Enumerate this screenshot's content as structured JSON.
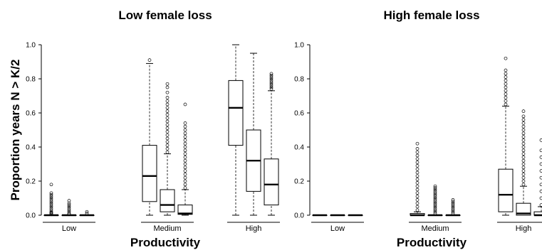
{
  "chart_data": [
    {
      "type": "box",
      "title": "Low female loss",
      "xlabel": "Productivity",
      "ylabel": "Proportion years N > K/2",
      "ylim": [
        0,
        1.0
      ],
      "yticks": [
        "0.0",
        "0.2",
        "0.4",
        "0.6",
        "0.8",
        "1.0"
      ],
      "show_ylabel": true,
      "groups": [
        {
          "label": "Low",
          "boxes": [
            {
              "min": 0,
              "q1": 0,
              "median": 0,
              "q3": 0,
              "max": 0,
              "outliers": [
                0.005,
                0.01,
                0.015,
                0.02,
                0.03,
                0.04,
                0.05,
                0.06,
                0.07,
                0.08,
                0.09,
                0.1,
                0.11,
                0.12,
                0.13,
                0.18
              ]
            },
            {
              "min": 0,
              "q1": 0,
              "median": 0,
              "q3": 0,
              "max": 0,
              "outliers": [
                0.005,
                0.01,
                0.02,
                0.03,
                0.04,
                0.05,
                0.06,
                0.07,
                0.085
              ]
            },
            {
              "min": 0,
              "q1": 0,
              "median": 0,
              "q3": 0,
              "max": 0,
              "outliers": [
                0.01,
                0.02
              ]
            }
          ]
        },
        {
          "label": "Medium",
          "boxes": [
            {
              "min": 0,
              "q1": 0.08,
              "median": 0.23,
              "q3": 0.41,
              "max": 0.89,
              "outliers": [
                0.91
              ]
            },
            {
              "min": 0,
              "q1": 0.02,
              "median": 0.06,
              "q3": 0.15,
              "max": 0.36,
              "outliers": [
                0.37,
                0.39,
                0.41,
                0.43,
                0.45,
                0.47,
                0.49,
                0.51,
                0.53,
                0.55,
                0.57,
                0.59,
                0.61,
                0.63,
                0.65,
                0.67,
                0.69,
                0.72,
                0.75,
                0.77
              ]
            },
            {
              "min": 0,
              "q1": 0.005,
              "median": 0.01,
              "q3": 0.06,
              "max": 0.15,
              "outliers": [
                0.16,
                0.18,
                0.2,
                0.22,
                0.24,
                0.26,
                0.28,
                0.3,
                0.32,
                0.34,
                0.36,
                0.38,
                0.4,
                0.42,
                0.44,
                0.46,
                0.48,
                0.5,
                0.52,
                0.54,
                0.65
              ]
            }
          ]
        },
        {
          "label": "High",
          "boxes": [
            {
              "min": 0,
              "q1": 0.41,
              "median": 0.63,
              "q3": 0.79,
              "max": 1.0,
              "outliers": []
            },
            {
              "min": 0,
              "q1": 0.14,
              "median": 0.32,
              "q3": 0.5,
              "max": 0.95,
              "outliers": []
            },
            {
              "min": 0,
              "q1": 0.06,
              "median": 0.18,
              "q3": 0.33,
              "max": 0.73,
              "outliers": [
                0.74,
                0.75,
                0.76,
                0.77,
                0.78,
                0.79,
                0.8,
                0.81,
                0.82,
                0.83
              ]
            }
          ]
        }
      ]
    },
    {
      "type": "box",
      "title": "High female loss",
      "xlabel": "Productivity",
      "ylabel": "",
      "ylim": [
        0,
        1.0
      ],
      "yticks": [
        "0.0",
        "0.2",
        "0.4",
        "0.6",
        "0.8",
        "1.0"
      ],
      "show_ylabel": false,
      "groups": [
        {
          "label": "Low",
          "boxes": [
            {
              "min": 0,
              "q1": 0,
              "median": 0,
              "q3": 0,
              "max": 0,
              "outliers": []
            },
            {
              "min": 0,
              "q1": 0,
              "median": 0,
              "q3": 0,
              "max": 0,
              "outliers": []
            },
            {
              "min": 0,
              "q1": 0,
              "median": 0,
              "q3": 0,
              "max": 0,
              "outliers": []
            }
          ]
        },
        {
          "label": "Medium",
          "boxes": [
            {
              "min": 0,
              "q1": 0,
              "median": 0,
              "q3": 0.01,
              "max": 0.02,
              "outliers": [
                0.03,
                0.05,
                0.07,
                0.09,
                0.11,
                0.13,
                0.15,
                0.17,
                0.19,
                0.21,
                0.23,
                0.25,
                0.27,
                0.29,
                0.31,
                0.33,
                0.35,
                0.37,
                0.39,
                0.42
              ]
            },
            {
              "min": 0,
              "q1": 0,
              "median": 0,
              "q3": 0,
              "max": 0,
              "outliers": [
                0.01,
                0.02,
                0.03,
                0.04,
                0.05,
                0.06,
                0.07,
                0.08,
                0.09,
                0.1,
                0.11,
                0.12,
                0.13,
                0.14,
                0.15,
                0.16,
                0.17
              ]
            },
            {
              "min": 0,
              "q1": 0,
              "median": 0,
              "q3": 0,
              "max": 0,
              "outliers": [
                0.01,
                0.02,
                0.03,
                0.04,
                0.05,
                0.06,
                0.07,
                0.08,
                0.09
              ]
            }
          ]
        },
        {
          "label": "High",
          "boxes": [
            {
              "min": 0,
              "q1": 0.02,
              "median": 0.12,
              "q3": 0.27,
              "max": 0.64,
              "outliers": [
                0.65,
                0.67,
                0.69,
                0.71,
                0.73,
                0.75,
                0.77,
                0.79,
                0.81,
                0.83,
                0.85,
                0.92
              ]
            },
            {
              "min": 0,
              "q1": 0,
              "median": 0.01,
              "q3": 0.07,
              "max": 0.17,
              "outliers": [
                0.18,
                0.2,
                0.22,
                0.24,
                0.26,
                0.28,
                0.3,
                0.32,
                0.34,
                0.36,
                0.38,
                0.4,
                0.42,
                0.44,
                0.46,
                0.48,
                0.5,
                0.52,
                0.54,
                0.56,
                0.58,
                0.61
              ]
            },
            {
              "min": 0,
              "q1": 0,
              "median": 0,
              "q3": 0.02,
              "max": 0.05,
              "outliers": [
                0.06,
                0.1,
                0.14,
                0.18,
                0.22,
                0.26,
                0.3,
                0.34,
                0.38,
                0.44
              ]
            }
          ]
        }
      ]
    }
  ]
}
